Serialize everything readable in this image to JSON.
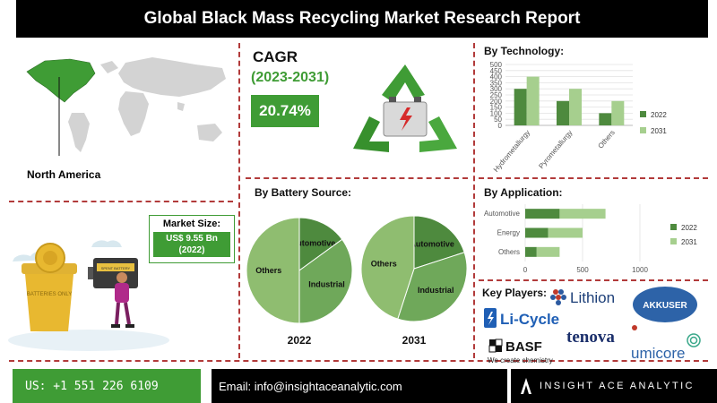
{
  "title": "Global Black Mass Recycling Market Research Report",
  "region": {
    "label": "North America"
  },
  "cagr": {
    "label": "CAGR",
    "period": "(2023-2031)",
    "value": "20.74%"
  },
  "market_size": {
    "label": "Market Size:",
    "value_line1": "US$ 9.55 Bn",
    "value_line2": "(2022)"
  },
  "bin_labels": {
    "bin_text": "BATTERIES ONLY",
    "battery_text": "SPENT BATTERY"
  },
  "key_players": {
    "label": "Key Players:",
    "names": [
      "Lithion",
      "AKKUSER",
      "Li-Cycle",
      "BASF",
      "We create chemistry",
      "tenova",
      "umicore"
    ]
  },
  "footer": {
    "phone": "US: +1 551 226 6109",
    "email": "Email: info@insightaceanalytic.com",
    "brand": "INSIGHT ACE ANALYTIC"
  },
  "colors": {
    "dark_green": "#4e8a3e",
    "light_green": "#a6cf8e",
    "mid_green": "#6fa85a",
    "accent_green": "#3f9c35",
    "title_bg": "#000000"
  },
  "chart_data": [
    {
      "type": "bar",
      "title": "By Technology:",
      "categories": [
        "Hydrometallurgy",
        "Pyrometallurgy",
        "Others"
      ],
      "series": [
        {
          "name": "2022",
          "values": [
            300,
            200,
            100
          ],
          "color": "#4e8a3e"
        },
        {
          "name": "2031",
          "values": [
            400,
            300,
            200
          ],
          "color": "#a6cf8e"
        }
      ],
      "yticks": [
        "0",
        "50",
        "100",
        "150",
        "200",
        "250",
        "300",
        "350",
        "400",
        "450",
        "500"
      ],
      "ylim": [
        0,
        500
      ],
      "legend": "right"
    },
    {
      "type": "bar",
      "orientation": "horizontal",
      "stacked": true,
      "title": "By  Application:",
      "categories": [
        "Automotive",
        "Energy",
        "Others"
      ],
      "series": [
        {
          "name": "2022",
          "values": [
            300,
            200,
            100
          ],
          "color": "#4e8a3e"
        },
        {
          "name": "2031",
          "values": [
            400,
            300,
            200
          ],
          "color": "#a6cf8e"
        }
      ],
      "xticks": [
        "0",
        "500",
        "1000"
      ],
      "xlim": [
        0,
        1000
      ],
      "legend": "right"
    },
    {
      "type": "pie",
      "title": "By Battery Source:",
      "year": "2022",
      "slices": [
        {
          "label": "Automotive",
          "value": 15,
          "color": "#4e8a3e"
        },
        {
          "label": "Industrial",
          "value": 35,
          "color": "#6fa85a"
        },
        {
          "label": "Others",
          "value": 50,
          "color": "#8fbd70"
        }
      ]
    },
    {
      "type": "pie",
      "year": "2031",
      "slices": [
        {
          "label": "Automotive",
          "value": 20,
          "color": "#4e8a3e"
        },
        {
          "label": "Industrial",
          "value": 35,
          "color": "#6fa85a"
        },
        {
          "label": "Others",
          "value": 45,
          "color": "#8fbd70"
        }
      ]
    }
  ]
}
